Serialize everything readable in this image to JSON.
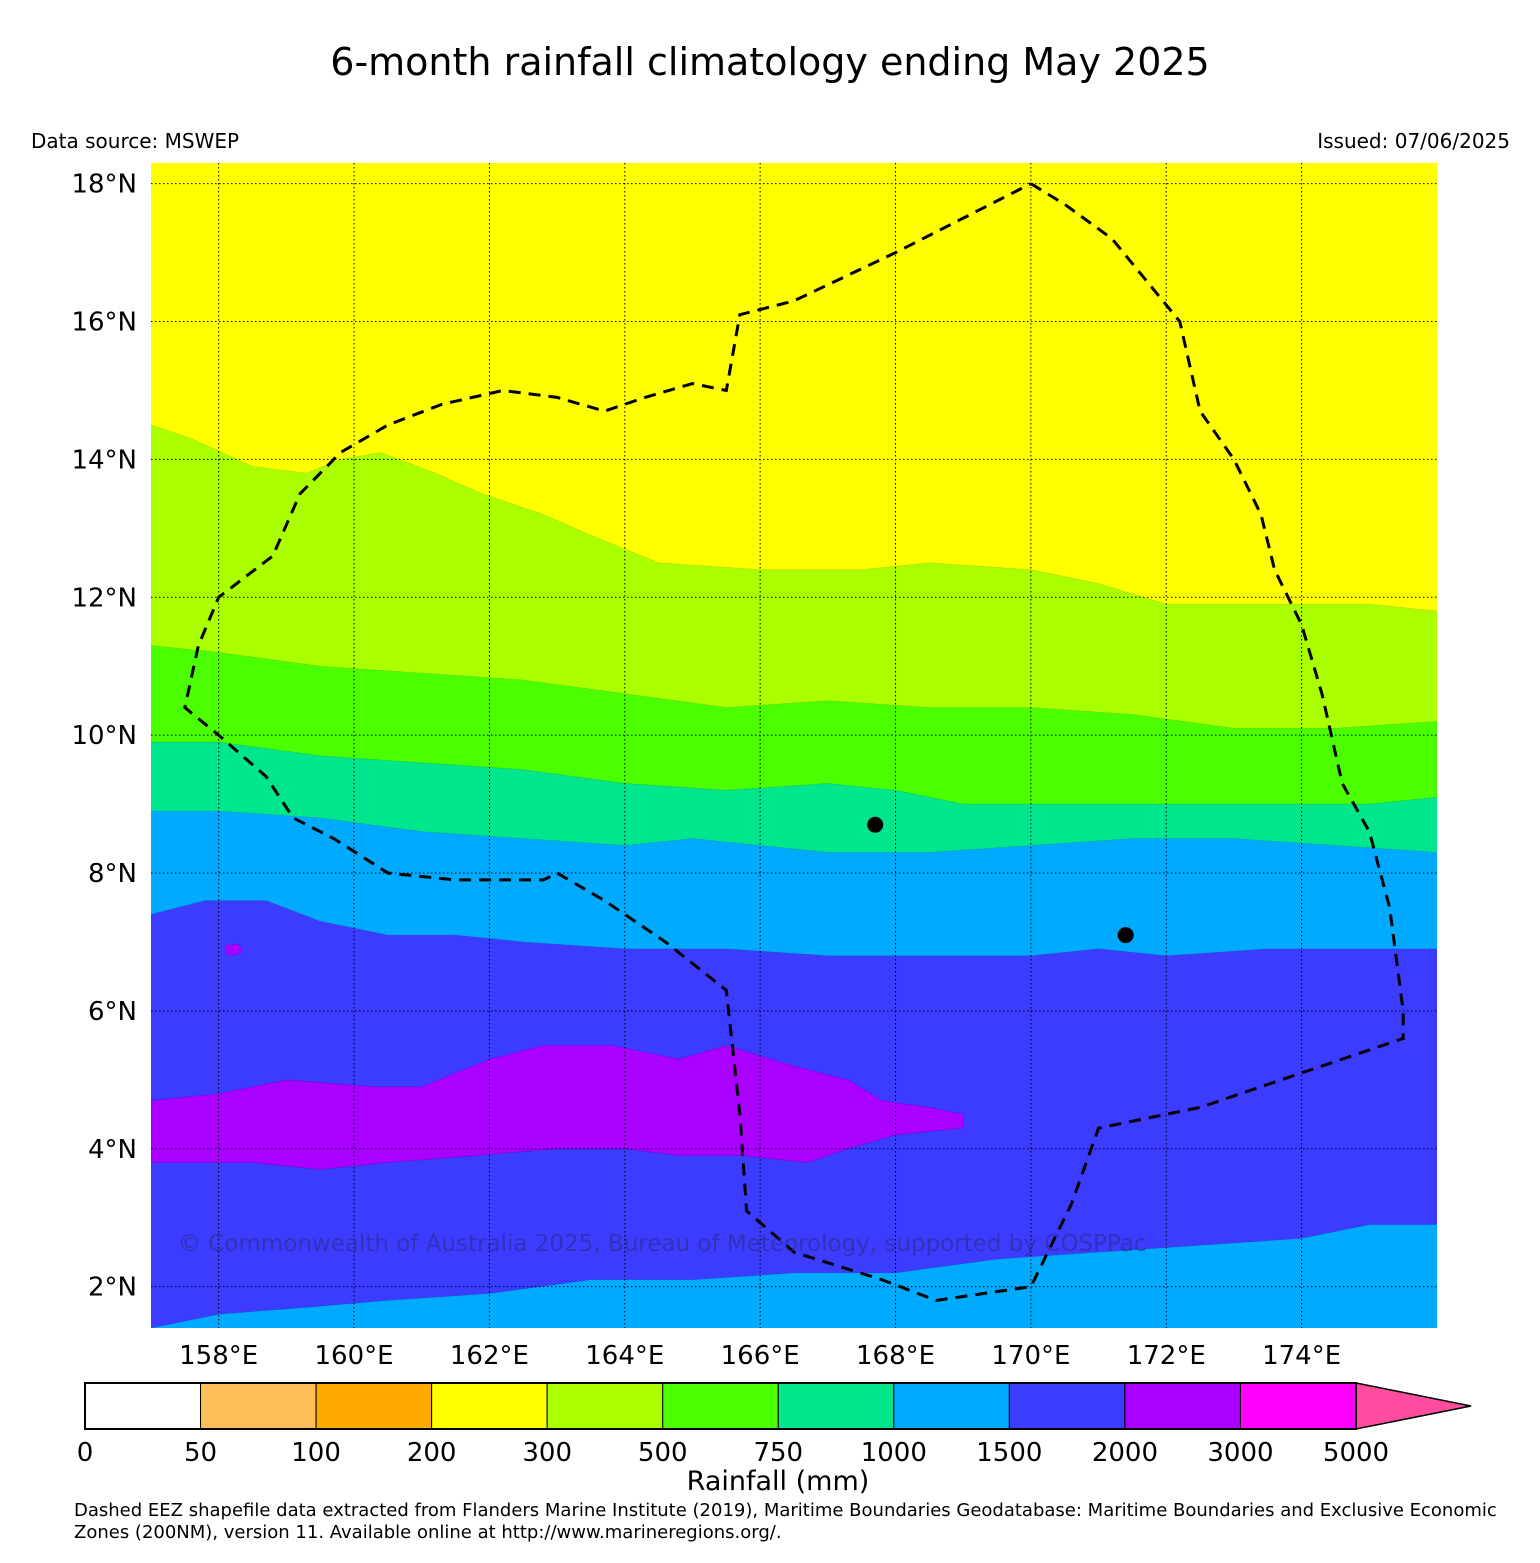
{
  "title": "6-month rainfall climatology ending May 2025",
  "data_source": "Data source: MSWEP",
  "issued": "Issued: 07/06/2025",
  "watermark": "© Commonwealth of Australia 2025, Bureau of Meteorology, supported by COSPPac",
  "footer": "Dashed EEZ shapefile data extracted from Flanders Marine Institute (2019), Maritime Boundaries Geodatabase: Maritime Boundaries and Exclusive Economic Zones (200NM), version 11. Available online at http://www.marineregions.org/.",
  "map": {
    "lon_range": [
      157.0,
      176.0
    ],
    "lat_range": [
      1.4,
      18.3
    ],
    "lat_ticks": [
      {
        "value": 2,
        "label": "2°N"
      },
      {
        "value": 4,
        "label": "4°N"
      },
      {
        "value": 6,
        "label": "6°N"
      },
      {
        "value": 8,
        "label": "8°N"
      },
      {
        "value": 10,
        "label": "10°N"
      },
      {
        "value": 12,
        "label": "12°N"
      },
      {
        "value": 14,
        "label": "14°N"
      },
      {
        "value": 16,
        "label": "16°N"
      },
      {
        "value": 18,
        "label": "18°N"
      }
    ],
    "lon_ticks": [
      {
        "value": 158,
        "label": "158°E"
      },
      {
        "value": 160,
        "label": "160°E"
      },
      {
        "value": 162,
        "label": "162°E"
      },
      {
        "value": 164,
        "label": "164°E"
      },
      {
        "value": 166,
        "label": "166°E"
      },
      {
        "value": 168,
        "label": "168°E"
      },
      {
        "value": 170,
        "label": "170°E"
      },
      {
        "value": 172,
        "label": "172°E"
      },
      {
        "value": 174,
        "label": "174°E"
      }
    ],
    "gridlines": true,
    "base_band_color": "#ffff00",
    "bands": [
      {
        "color": "#aaff00",
        "range_mm": "300-500",
        "boundary": [
          [
            157.0,
            14.5
          ],
          [
            157.6,
            14.3
          ],
          [
            158.5,
            13.9
          ],
          [
            159.3,
            13.8
          ],
          [
            159.8,
            14.0
          ],
          [
            160.4,
            14.1
          ],
          [
            161.2,
            13.8
          ],
          [
            161.9,
            13.5
          ],
          [
            162.8,
            13.2
          ],
          [
            163.5,
            12.9
          ],
          [
            164.5,
            12.5
          ],
          [
            166.0,
            12.4
          ],
          [
            167.5,
            12.4
          ],
          [
            168.5,
            12.5
          ],
          [
            170.0,
            12.4
          ],
          [
            171.0,
            12.2
          ],
          [
            172.0,
            11.9
          ],
          [
            173.5,
            11.9
          ],
          [
            175.0,
            11.9
          ],
          [
            176.0,
            11.8
          ]
        ]
      },
      {
        "color": "#4cff00",
        "range_mm": "500-750",
        "boundary": [
          [
            157.0,
            11.3
          ],
          [
            158.0,
            11.2
          ],
          [
            159.5,
            11.0
          ],
          [
            161.0,
            10.9
          ],
          [
            162.5,
            10.8
          ],
          [
            164.0,
            10.6
          ],
          [
            165.5,
            10.4
          ],
          [
            167.0,
            10.5
          ],
          [
            168.5,
            10.4
          ],
          [
            170.0,
            10.4
          ],
          [
            171.5,
            10.3
          ],
          [
            173.0,
            10.1
          ],
          [
            174.5,
            10.1
          ],
          [
            176.0,
            10.2
          ]
        ]
      },
      {
        "color": "#00e68c",
        "range_mm": "750-1000",
        "boundary": [
          [
            157.0,
            9.9
          ],
          [
            158.0,
            9.9
          ],
          [
            159.5,
            9.7
          ],
          [
            161.0,
            9.6
          ],
          [
            162.5,
            9.5
          ],
          [
            164.0,
            9.3
          ],
          [
            165.5,
            9.2
          ],
          [
            167.0,
            9.3
          ],
          [
            168.0,
            9.2
          ],
          [
            169.0,
            9.0
          ],
          [
            170.5,
            9.0
          ],
          [
            172.0,
            9.0
          ],
          [
            173.5,
            9.0
          ],
          [
            175.0,
            9.0
          ],
          [
            176.0,
            9.1
          ]
        ]
      },
      {
        "color": "#00aaff",
        "range_mm": "1000-1500",
        "boundary": [
          [
            157.0,
            8.9
          ],
          [
            158.0,
            8.9
          ],
          [
            159.5,
            8.8
          ],
          [
            161.0,
            8.6
          ],
          [
            162.5,
            8.5
          ],
          [
            164.0,
            8.4
          ],
          [
            165.0,
            8.5
          ],
          [
            166.0,
            8.4
          ],
          [
            167.0,
            8.3
          ],
          [
            168.5,
            8.3
          ],
          [
            170.0,
            8.4
          ],
          [
            171.5,
            8.5
          ],
          [
            173.0,
            8.5
          ],
          [
            174.5,
            8.4
          ],
          [
            176.0,
            8.3
          ]
        ]
      },
      {
        "color": "#3c3cff",
        "range_mm": "1500-2000",
        "boundary": [
          [
            157.0,
            7.4
          ],
          [
            157.8,
            7.6
          ],
          [
            158.7,
            7.6
          ],
          [
            159.5,
            7.3
          ],
          [
            160.5,
            7.1
          ],
          [
            161.5,
            7.1
          ],
          [
            162.5,
            7.0
          ],
          [
            164.0,
            6.9
          ],
          [
            165.5,
            6.9
          ],
          [
            167.0,
            6.8
          ],
          [
            168.5,
            6.8
          ],
          [
            170.0,
            6.8
          ],
          [
            171.0,
            6.9
          ],
          [
            172.0,
            6.8
          ],
          [
            173.5,
            6.9
          ],
          [
            176.0,
            6.9
          ]
        ]
      },
      {
        "color": "#00aaff",
        "range_mm": "1000-1500",
        "boundary": [
          [
            157.0,
            1.4
          ],
          [
            158.0,
            1.6
          ],
          [
            159.3,
            1.7
          ],
          [
            160.5,
            1.8
          ],
          [
            162.0,
            1.9
          ],
          [
            163.5,
            2.1
          ],
          [
            165.0,
            2.1
          ],
          [
            166.5,
            2.2
          ],
          [
            168.0,
            2.2
          ],
          [
            169.5,
            2.4
          ],
          [
            171.0,
            2.5
          ],
          [
            172.5,
            2.6
          ],
          [
            174.0,
            2.7
          ],
          [
            175.0,
            2.9
          ],
          [
            176.0,
            2.9
          ]
        ]
      }
    ],
    "blobs": [
      {
        "color": "#aa00ff",
        "range_mm": "2000-3000",
        "polygon": [
          [
            157.0,
            4.7
          ],
          [
            158.0,
            4.8
          ],
          [
            159.0,
            5.0
          ],
          [
            160.3,
            4.9
          ],
          [
            161.0,
            4.9
          ],
          [
            162.0,
            5.3
          ],
          [
            162.8,
            5.5
          ],
          [
            163.8,
            5.5
          ],
          [
            164.8,
            5.3
          ],
          [
            165.5,
            5.5
          ],
          [
            166.5,
            5.2
          ],
          [
            167.3,
            5.0
          ],
          [
            167.8,
            4.7
          ],
          [
            168.5,
            4.6
          ],
          [
            169.0,
            4.5
          ],
          [
            169.0,
            4.3
          ],
          [
            168.0,
            4.2
          ],
          [
            167.3,
            4.0
          ],
          [
            166.7,
            3.8
          ],
          [
            165.7,
            3.9
          ],
          [
            164.8,
            3.9
          ],
          [
            164.0,
            4.0
          ],
          [
            163.0,
            4.0
          ],
          [
            161.8,
            3.9
          ],
          [
            160.5,
            3.8
          ],
          [
            159.5,
            3.7
          ],
          [
            158.5,
            3.8
          ],
          [
            157.5,
            3.8
          ],
          [
            157.0,
            3.8
          ]
        ]
      },
      {
        "color": "#aa00ff",
        "range_mm": "2000-3000",
        "polygon": [
          [
            158.1,
            6.95
          ],
          [
            158.3,
            6.97
          ],
          [
            158.35,
            6.85
          ],
          [
            158.2,
            6.8
          ],
          [
            158.1,
            6.85
          ]
        ]
      }
    ],
    "eez": [
      [
        170.0,
        18.0
      ],
      [
        170.5,
        17.7
      ],
      [
        171.2,
        17.2
      ],
      [
        171.7,
        16.6
      ],
      [
        172.2,
        16.0
      ],
      [
        172.5,
        14.7
      ],
      [
        173.0,
        14.0
      ],
      [
        173.4,
        13.2
      ],
      [
        173.6,
        12.4
      ],
      [
        174.0,
        11.6
      ],
      [
        174.3,
        10.6
      ],
      [
        174.6,
        9.3
      ],
      [
        175.0,
        8.6
      ],
      [
        175.3,
        7.5
      ],
      [
        175.5,
        6.0
      ],
      [
        175.5,
        5.6
      ],
      [
        174.0,
        5.1
      ],
      [
        172.5,
        4.6
      ],
      [
        171.0,
        4.3
      ],
      [
        170.6,
        3.2
      ],
      [
        170.0,
        2.0
      ],
      [
        168.6,
        1.8
      ],
      [
        167.8,
        2.1
      ],
      [
        166.5,
        2.5
      ],
      [
        165.8,
        3.1
      ],
      [
        165.7,
        4.5
      ],
      [
        165.5,
        6.3
      ],
      [
        164.6,
        7.0
      ],
      [
        163.7,
        7.6
      ],
      [
        163.0,
        8.0
      ],
      [
        162.8,
        7.9
      ],
      [
        161.5,
        7.9
      ],
      [
        160.5,
        8.0
      ],
      [
        159.7,
        8.5
      ],
      [
        159.1,
        8.8
      ],
      [
        158.7,
        9.4
      ],
      [
        158.0,
        10.0
      ],
      [
        157.5,
        10.4
      ],
      [
        157.7,
        11.3
      ],
      [
        158.0,
        12.0
      ],
      [
        158.8,
        12.6
      ],
      [
        159.2,
        13.5
      ],
      [
        159.8,
        14.1
      ],
      [
        160.5,
        14.5
      ],
      [
        161.3,
        14.8
      ],
      [
        162.2,
        15.0
      ],
      [
        163.0,
        14.9
      ],
      [
        163.7,
        14.7
      ],
      [
        164.3,
        14.9
      ],
      [
        165.0,
        15.1
      ],
      [
        165.5,
        15.0
      ],
      [
        165.7,
        16.1
      ],
      [
        166.5,
        16.3
      ],
      [
        168.0,
        17.0
      ],
      [
        169.0,
        17.5
      ],
      [
        170.0,
        18.0
      ]
    ],
    "points": [
      {
        "lon": 167.7,
        "lat": 8.7
      },
      {
        "lon": 171.4,
        "lat": 7.1
      }
    ]
  },
  "colorbar": {
    "label": "Rainfall (mm)",
    "ticks": [
      "0",
      "50",
      "100",
      "200",
      "300",
      "500",
      "750",
      "1000",
      "1500",
      "2000",
      "3000",
      "5000"
    ],
    "colors": [
      "#ffffff",
      "#ffbe5a",
      "#ffaa00",
      "#ffff00",
      "#aaff00",
      "#4cff00",
      "#00e68c",
      "#00aaff",
      "#3c3cff",
      "#aa00ff",
      "#ff00ff"
    ],
    "extend_color": "#ff4c9e"
  }
}
